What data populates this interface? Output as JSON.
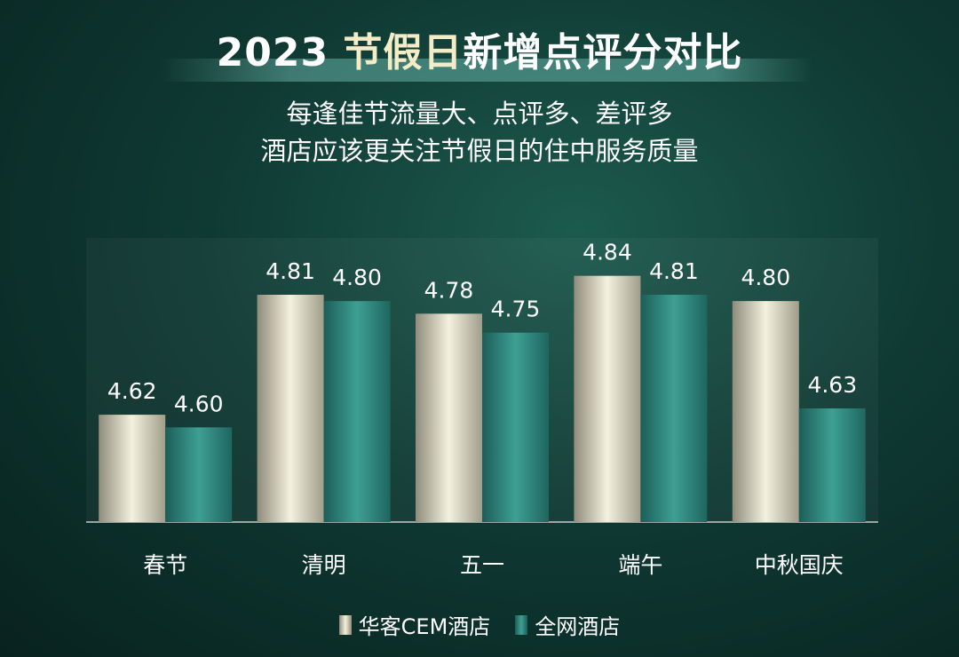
{
  "title": {
    "year": "2023",
    "highlight": "节假日",
    "rest": "新增点评分对比"
  },
  "subtitle_lines": [
    "每逢佳节流量大、点评多、差评多",
    "酒店应该更关注节假日的住中服务质量"
  ],
  "colors": {
    "series_a": "#e9e5cf",
    "series_b": "#2f8a80",
    "highlight_text": "#f3ecc6"
  },
  "chart_data": {
    "type": "bar",
    "categories": [
      "春节",
      "清明",
      "五一",
      "端午",
      "中秋国庆"
    ],
    "series": [
      {
        "name": "华客CEM酒店",
        "values": [
          4.62,
          4.81,
          4.78,
          4.84,
          4.8
        ]
      },
      {
        "name": "全网酒店",
        "values": [
          4.6,
          4.8,
          4.75,
          4.81,
          4.63
        ]
      }
    ],
    "value_labels": [
      [
        "4.62",
        "4.81",
        "4.78",
        "4.84",
        "4.80"
      ],
      [
        "4.60",
        "4.80",
        "4.75",
        "4.81",
        "4.63"
      ]
    ],
    "ylim": [
      4.45,
      4.9
    ],
    "grid": false,
    "legend_position": "bottom-center"
  }
}
